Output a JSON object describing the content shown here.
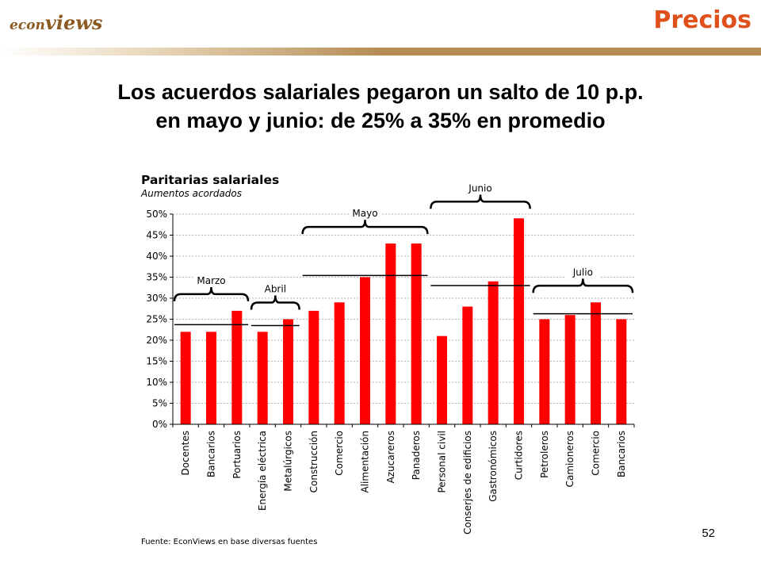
{
  "header": {
    "logo_prefix": "econ",
    "logo_suffix": "views",
    "section": "Precios"
  },
  "headline": {
    "line1": "Los acuerdos salariales pegaron un salto de 10 p.p.",
    "line2": "en mayo y junio: de 25% a 35% en promedio"
  },
  "page_number": "52",
  "colors": {
    "bar": "#ff0000",
    "section": "#e0501a",
    "logo": "#8c5a23",
    "strip": "#b58c54"
  },
  "chart_data": {
    "type": "bar",
    "title": "Paritarias salariales",
    "subtitle": "Aumentos acordados",
    "source": "Fuente: EconViews en base diversas fuentes",
    "categories": [
      "Docentes",
      "Bancarios",
      "Portuarios",
      "Energía eléctrica",
      "Metalúrgicos",
      "Construcción",
      "Comercio",
      "Alimentación",
      "Azucareros",
      "Panaderos",
      "Personal civil",
      "Conserjes de edificios",
      "Gastronómicos",
      "Curtidores",
      "Petroleros",
      "Camioneros",
      "Comercio",
      "Bancarios"
    ],
    "values": [
      22,
      22,
      27,
      22,
      25,
      27,
      29,
      35,
      43,
      43,
      21,
      28,
      34,
      49,
      25,
      26,
      29,
      25
    ],
    "ylim": [
      0,
      50
    ],
    "yticks": [
      "0%",
      "5%",
      "10%",
      "15%",
      "20%",
      "25%",
      "30%",
      "35%",
      "40%",
      "45%",
      "50%"
    ],
    "grid": true,
    "groups": [
      {
        "label": "Marzo",
        "start": 0,
        "end": 2,
        "average": 23.7
      },
      {
        "label": "Abril",
        "start": 3,
        "end": 4,
        "average": 23.5
      },
      {
        "label": "Mayo",
        "start": 5,
        "end": 9,
        "average": 35.4
      },
      {
        "label": "Junio",
        "start": 10,
        "end": 13,
        "average": 33
      },
      {
        "label": "Julio",
        "start": 14,
        "end": 17,
        "average": 26.3
      }
    ]
  }
}
